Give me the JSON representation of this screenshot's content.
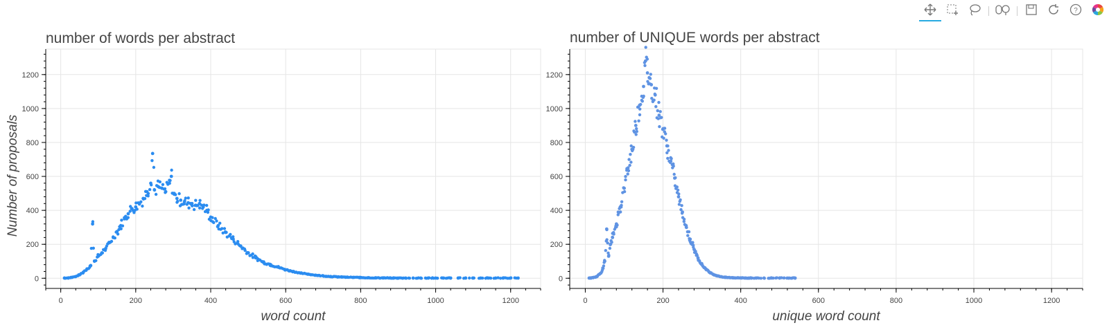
{
  "toolbar": {
    "tools": [
      {
        "name": "pan-tool",
        "icon": "move-arrows-icon",
        "active": true
      },
      {
        "name": "box-zoom-tool",
        "icon": "box-zoom-icon"
      },
      {
        "name": "lasso-select-tool",
        "icon": "lasso-icon"
      },
      {
        "name": "wheel-zoom-tool",
        "icon": "wheel-zoom-icon"
      },
      {
        "name": "save-tool",
        "icon": "save-icon"
      },
      {
        "name": "reset-tool",
        "icon": "reset-icon"
      },
      {
        "name": "help-tool",
        "icon": "help-icon"
      },
      {
        "name": "bokeh-logo",
        "icon": "bokeh-logo-icon"
      }
    ]
  },
  "chart_data": [
    {
      "type": "scatter",
      "title": "number of words per abstract",
      "xlabel": "word count",
      "ylabel": "Number of proposals",
      "xlim": [
        -40,
        1280
      ],
      "ylim": [
        -60,
        1350
      ],
      "xticks": [
        0,
        200,
        400,
        600,
        800,
        1000,
        1200
      ],
      "yticks": [
        0,
        200,
        400,
        600,
        800,
        1000,
        1200
      ],
      "grid": true,
      "color": "#2b8cf0",
      "series": [
        {
          "x": [
            10,
            20,
            30,
            40,
            50,
            60,
            70,
            80,
            85,
            90,
            100,
            110,
            120,
            130,
            140,
            150,
            160,
            170,
            180,
            190,
            200,
            210,
            220,
            230,
            240,
            245,
            250,
            260,
            270,
            280,
            290,
            295,
            300,
            310,
            320,
            330,
            340,
            350,
            360,
            370,
            380,
            390,
            400,
            420,
            440,
            460,
            480,
            500,
            520,
            540,
            560,
            580,
            600,
            620,
            640,
            660,
            680,
            700,
            720,
            740,
            760,
            780,
            800,
            820,
            840,
            860,
            880,
            900,
            920,
            940,
            960,
            980,
            1000,
            1020,
            1040,
            1060,
            1080,
            1100,
            1120,
            1140,
            1160,
            1180,
            1200,
            1220
          ],
          "y": [
            1,
            2,
            5,
            10,
            20,
            35,
            55,
            75,
            320,
            100,
            130,
            150,
            175,
            210,
            240,
            275,
            310,
            350,
            380,
            410,
            420,
            440,
            470,
            510,
            560,
            735,
            520,
            540,
            530,
            510,
            560,
            600,
            500,
            470,
            460,
            450,
            445,
            440,
            430,
            440,
            420,
            400,
            360,
            310,
            270,
            230,
            190,
            150,
            120,
            95,
            80,
            65,
            50,
            40,
            30,
            24,
            18,
            14,
            10,
            8,
            6,
            5,
            4,
            3,
            2,
            2,
            1,
            1,
            1,
            1,
            1,
            1,
            1,
            1,
            1,
            1,
            1,
            1,
            1,
            1,
            1,
            1,
            1,
            1
          ]
        }
      ]
    },
    {
      "type": "scatter",
      "title": "number of UNIQUE words per abstract",
      "xlabel": "unique word count",
      "ylabel": "",
      "xlim": [
        -40,
        1280
      ],
      "ylim": [
        -60,
        1350
      ],
      "xticks": [
        0,
        200,
        400,
        600,
        800,
        1000,
        1200
      ],
      "yticks": [
        0,
        200,
        400,
        600,
        800,
        1000,
        1200
      ],
      "grid": true,
      "color": "#5f93e3",
      "series": [
        {
          "x": [
            10,
            20,
            30,
            40,
            45,
            50,
            55,
            60,
            65,
            70,
            80,
            90,
            100,
            110,
            120,
            130,
            140,
            150,
            155,
            160,
            165,
            170,
            180,
            190,
            200,
            210,
            220,
            230,
            240,
            250,
            260,
            270,
            280,
            290,
            300,
            310,
            320,
            330,
            340,
            350,
            360,
            380,
            400,
            420,
            440,
            460,
            480,
            500,
            540
          ],
          "y": [
            1,
            3,
            10,
            30,
            60,
            100,
            290,
            130,
            200,
            240,
            320,
            420,
            530,
            650,
            760,
            900,
            1020,
            1130,
            1280,
            1210,
            1180,
            1140,
            1080,
            960,
            880,
            780,
            690,
            590,
            480,
            390,
            300,
            230,
            170,
            120,
            80,
            55,
            35,
            22,
            14,
            9,
            5,
            3,
            2,
            1,
            1,
            1,
            1,
            1,
            1
          ]
        }
      ]
    }
  ]
}
